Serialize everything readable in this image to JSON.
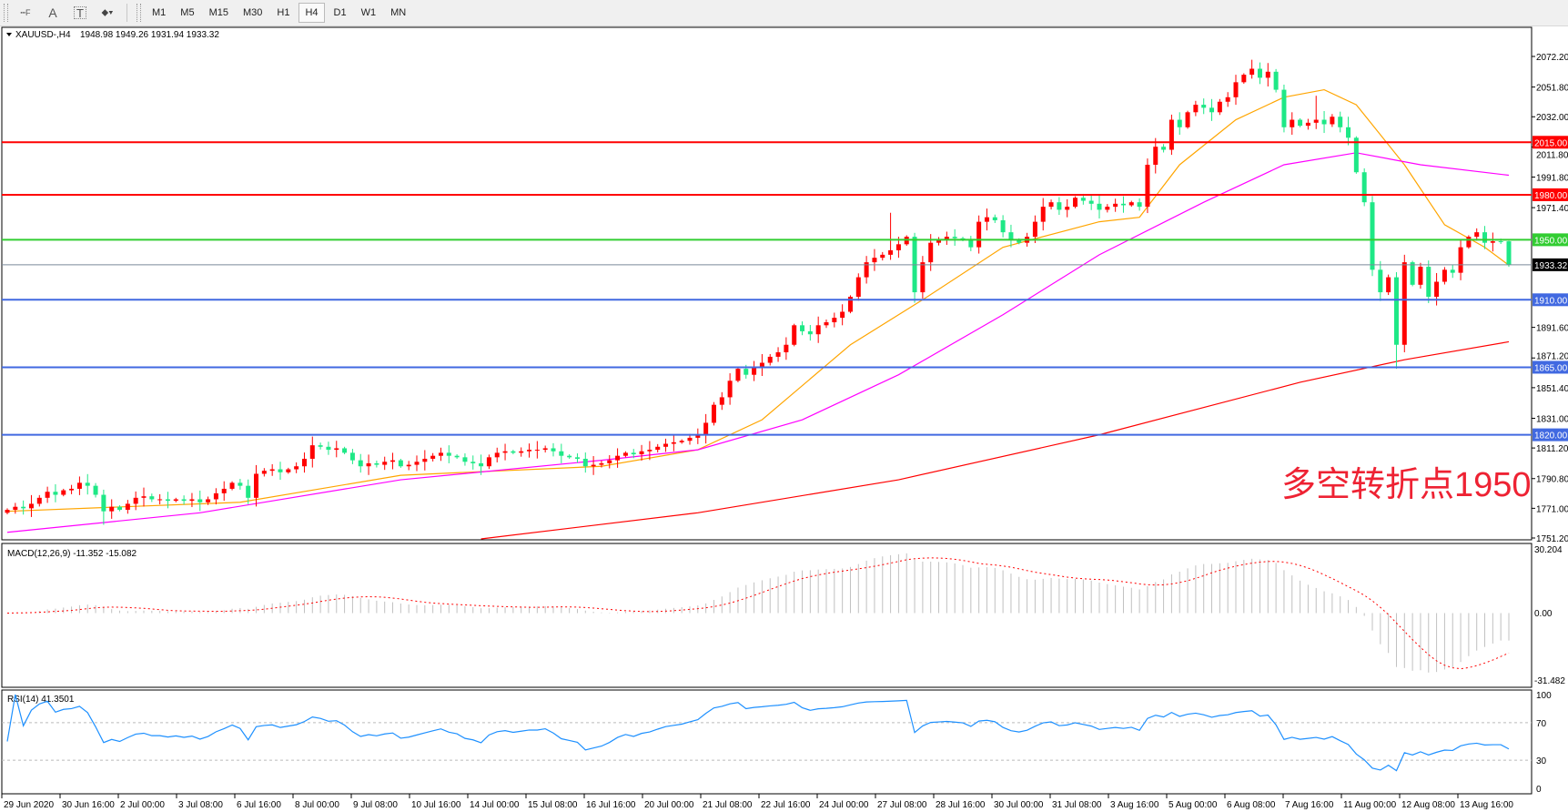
{
  "toolbar": {
    "tools": [
      {
        "icon": "fibonacci-fan-icon",
        "glyph": "┅F"
      },
      {
        "icon": "text-label-icon",
        "glyph": "A"
      },
      {
        "icon": "text-box-icon",
        "glyph": "T"
      },
      {
        "icon": "arrows-icon",
        "glyph": "⬥▾"
      }
    ],
    "timeframes": [
      "M1",
      "M5",
      "M15",
      "M30",
      "H1",
      "H4",
      "D1",
      "W1",
      "MN"
    ],
    "active_timeframe": "H4"
  },
  "header": {
    "symbol": "XAUUSD-,H4",
    "ohlc": "1948.98 1949.26 1931.94 1933.32"
  },
  "annotation": {
    "text": "多空转折点1950",
    "color": "#ee2233"
  },
  "macd": {
    "label": "MACD(12,26,9) -11.352 -15.082",
    "max_label": "30.204",
    "zero_label": "0.00",
    "min_label": "-31.482",
    "max": 30.204,
    "min": -31.482
  },
  "rsi": {
    "label": "RSI(14) 41.3501",
    "ticks": [
      "100",
      "70",
      "30",
      "0"
    ],
    "levels": [
      70,
      30
    ]
  },
  "colors": {
    "bull": "#ff0000",
    "bear": "#1ee886",
    "ma_fast": "#ffa500",
    "ma_mid": "#ff00ff",
    "ma_slow": "#ff0000",
    "rsi": "#1e90ff",
    "macd_hist": "#c0c0c0",
    "macd_signal": "#ff0000"
  },
  "chart_data": {
    "type": "candlestick",
    "title": "XAUUSD-,H4",
    "ylim": [
      1751.2,
      2072.2
    ],
    "price_ticks": [
      "2072.20",
      "2051.80",
      "2032.00",
      "2011.80",
      "1991.80",
      "1971.40",
      "1891.60",
      "1871.20",
      "1851.40",
      "1831.00",
      "1811.20",
      "1790.80",
      "1771.00",
      "1751.20"
    ],
    "time_labels": [
      "29 Jun 2020",
      "30 Jun 16:00",
      "2 Jul 00:00",
      "3 Jul 08:00",
      "6 Jul 16:00",
      "8 Jul 00:00",
      "9 Jul 08:00",
      "10 Jul 16:00",
      "14 Jul 00:00",
      "15 Jul 08:00",
      "16 Jul 16:00",
      "20 Jul 00:00",
      "21 Jul 08:00",
      "22 Jul 16:00",
      "24 Jul 00:00",
      "27 Jul 08:00",
      "28 Jul 16:00",
      "30 Jul 00:00",
      "31 Jul 08:00",
      "3 Aug 16:00",
      "5 Aug 00:00",
      "6 Aug 08:00",
      "7 Aug 16:00",
      "11 Aug 00:00",
      "12 Aug 08:00",
      "13 Aug 16:00"
    ],
    "last_bar": {
      "open": 1948.98,
      "high": 1949.26,
      "low": 1931.94,
      "close": 1933.32
    },
    "close": [
      1770,
      1772,
      1771,
      1774,
      1778,
      1782,
      1780,
      1783,
      1784,
      1788,
      1786,
      1780,
      1769,
      1772,
      1770,
      1774,
      1778,
      1779,
      1777,
      1777,
      1776,
      1777,
      1776,
      1777,
      1775,
      1777,
      1781,
      1784,
      1788,
      1786,
      1778,
      1794,
      1796,
      1797,
      1795,
      1797,
      1799,
      1804,
      1813,
      1812,
      1810,
      1811,
      1808,
      1803,
      1799,
      1801,
      1800,
      1802,
      1803,
      1799,
      1800,
      1802,
      1804,
      1806,
      1808,
      1806,
      1805,
      1802,
      1801,
      1799,
      1805,
      1808,
      1809,
      1808,
      1809,
      1810,
      1810,
      1811,
      1809,
      1806,
      1805,
      1804,
      1799,
      1800,
      1801,
      1803,
      1806,
      1808,
      1807,
      1809,
      1810,
      1812,
      1814,
      1815,
      1816,
      1818,
      1820,
      1828,
      1840,
      1845,
      1856,
      1864,
      1860,
      1865,
      1868,
      1872,
      1875,
      1880,
      1893,
      1889,
      1887,
      1893,
      1895,
      1898,
      1902,
      1912,
      1925,
      1935,
      1938,
      1940,
      1943,
      1947,
      1952,
      1915,
      1935,
      1948,
      1950,
      1952,
      1951,
      1950,
      1945,
      1962,
      1965,
      1963,
      1955,
      1950,
      1948,
      1952,
      1962,
      1972,
      1975,
      1970,
      1972,
      1978,
      1976,
      1974,
      1970,
      1972,
      1974,
      1973,
      1975,
      1972,
      2000,
      2012,
      2010,
      2030,
      2025,
      2035,
      2040,
      2038,
      2035,
      2042,
      2045,
      2055,
      2060,
      2064,
      2058,
      2062,
      2050,
      2025,
      2030,
      2026,
      2028,
      2030,
      2027,
      2032,
      2025,
      2018,
      1995,
      1975,
      1930,
      1915,
      1925,
      1880,
      1935,
      1920,
      1932,
      1912,
      1922,
      1930,
      1928,
      1945,
      1952,
      1955,
      1948,
      1949,
      1948.98,
      1933.32
    ],
    "wick_extremes": [
      {
        "bar": 113,
        "low": 1908
      },
      {
        "bar": 110,
        "high": 1968
      },
      {
        "bar": 155,
        "high": 2070
      },
      {
        "bar": 173,
        "low": 1864
      },
      {
        "bar": 163,
        "high": 2046
      },
      {
        "bar": 12,
        "low": 1760
      },
      {
        "bar": 167,
        "high": 2032
      }
    ],
    "moving_averages": [
      {
        "color_key": "ma_fast",
        "points": [
          [
            0,
            1769
          ],
          [
            29,
            1775
          ],
          [
            49,
            1793
          ],
          [
            74,
            1799
          ],
          [
            86,
            1810
          ],
          [
            94,
            1830
          ],
          [
            105,
            1880
          ],
          [
            114,
            1910
          ],
          [
            124,
            1945
          ],
          [
            136,
            1962
          ],
          [
            141,
            1965
          ],
          [
            146,
            2000
          ],
          [
            153,
            2030
          ],
          [
            159,
            2045
          ],
          [
            164,
            2050
          ],
          [
            168,
            2040
          ],
          [
            174,
            2000
          ],
          [
            179,
            1960
          ],
          [
            184,
            1945
          ],
          [
            187,
            1933
          ]
        ]
      },
      {
        "color_key": "ma_mid",
        "points": [
          [
            0,
            1755
          ],
          [
            24,
            1768
          ],
          [
            49,
            1790
          ],
          [
            74,
            1803
          ],
          [
            86,
            1810
          ],
          [
            99,
            1830
          ],
          [
            111,
            1860
          ],
          [
            124,
            1900
          ],
          [
            136,
            1940
          ],
          [
            149,
            1975
          ],
          [
            159,
            2000
          ],
          [
            168,
            2008
          ],
          [
            176,
            2000
          ],
          [
            187,
            1993
          ]
        ]
      },
      {
        "color_key": "ma_slow",
        "points": [
          [
            59,
            1750.6
          ],
          [
            86,
            1768
          ],
          [
            111,
            1790
          ],
          [
            136,
            1820
          ],
          [
            161,
            1855
          ],
          [
            174,
            1870
          ],
          [
            187,
            1882
          ]
        ]
      }
    ],
    "levels": [
      {
        "price": 2015.0,
        "label": "2015.00",
        "color": "#ff0000"
      },
      {
        "price": 1980.0,
        "label": "1980.00",
        "color": "#ff0000"
      },
      {
        "price": 1950.0,
        "label": "1950.00",
        "color": "#32cd32"
      },
      {
        "price": 1910.0,
        "label": "1910.00",
        "color": "#4169e1"
      },
      {
        "price": 1865.0,
        "label": "1865.00",
        "color": "#4169e1"
      },
      {
        "price": 1820.0,
        "label": "1820.00",
        "color": "#4169e1"
      }
    ],
    "current_price": {
      "price": 1933.32,
      "label": "1933.32"
    }
  }
}
